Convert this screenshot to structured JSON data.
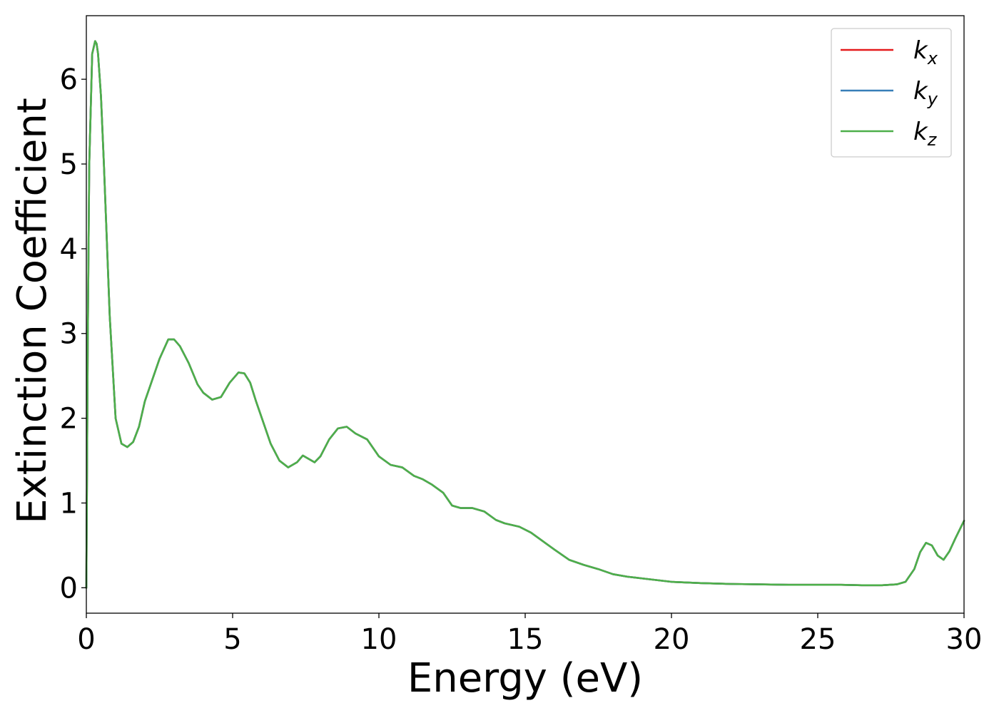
{
  "chart_data": {
    "type": "line",
    "title": "",
    "xlabel": "Energy (eV)",
    "ylabel": "Extinction Coefficient",
    "xlim": [
      0,
      30
    ],
    "ylim": [
      -0.3,
      6.75
    ],
    "xticks": [
      0,
      5,
      10,
      15,
      20,
      25,
      30
    ],
    "yticks": [
      0,
      1,
      2,
      3,
      4,
      5,
      6
    ],
    "xtick_labels": [
      "0",
      "5",
      "10",
      "15",
      "20",
      "25",
      "30"
    ],
    "ytick_labels": [
      "0",
      "1",
      "2",
      "3",
      "4",
      "5",
      "6"
    ],
    "grid": false,
    "legend": "top-right",
    "x": [
      0,
      0.05,
      0.1,
      0.2,
      0.3,
      0.35,
      0.4,
      0.5,
      0.6,
      0.8,
      1.0,
      1.2,
      1.4,
      1.6,
      1.8,
      2.0,
      2.2,
      2.5,
      2.8,
      3.0,
      3.2,
      3.5,
      3.8,
      4.0,
      4.3,
      4.6,
      4.9,
      5.2,
      5.4,
      5.6,
      5.8,
      6.0,
      6.3,
      6.6,
      6.9,
      7.2,
      7.4,
      7.6,
      7.8,
      8.0,
      8.3,
      8.6,
      8.9,
      9.2,
      9.6,
      10.0,
      10.4,
      10.8,
      11.2,
      11.5,
      11.8,
      12.2,
      12.5,
      12.8,
      13.2,
      13.6,
      14.0,
      14.3,
      14.8,
      15.2,
      15.6,
      16.0,
      16.5,
      17.0,
      17.5,
      18.0,
      18.5,
      19.0,
      19.5,
      20.0,
      21.0,
      22.0,
      23.0,
      24.0,
      25.0,
      25.8,
      26.5,
      27.2,
      27.7,
      28.0,
      28.3,
      28.5,
      28.7,
      28.9,
      29.1,
      29.3,
      29.5,
      29.7,
      29.9,
      30.0
    ],
    "series": [
      {
        "name": "k_x",
        "label_base": "k",
        "label_sub": "x",
        "color": "#e41a1c",
        "y": [
          0.0,
          3.0,
          5.0,
          6.3,
          6.45,
          6.42,
          6.3,
          5.8,
          5.0,
          3.2,
          2.0,
          1.7,
          1.66,
          1.72,
          1.9,
          2.2,
          2.4,
          2.7,
          2.93,
          2.93,
          2.85,
          2.65,
          2.4,
          2.3,
          2.22,
          2.25,
          2.42,
          2.54,
          2.53,
          2.42,
          2.2,
          2.0,
          1.7,
          1.5,
          1.42,
          1.48,
          1.56,
          1.52,
          1.48,
          1.55,
          1.75,
          1.88,
          1.9,
          1.82,
          1.75,
          1.55,
          1.45,
          1.42,
          1.32,
          1.28,
          1.22,
          1.12,
          0.97,
          0.94,
          0.94,
          0.9,
          0.8,
          0.76,
          0.72,
          0.65,
          0.55,
          0.45,
          0.33,
          0.27,
          0.22,
          0.16,
          0.13,
          0.11,
          0.09,
          0.07,
          0.055,
          0.045,
          0.04,
          0.035,
          0.035,
          0.035,
          0.03,
          0.03,
          0.04,
          0.07,
          0.22,
          0.42,
          0.53,
          0.5,
          0.38,
          0.33,
          0.43,
          0.58,
          0.72,
          0.79
        ]
      },
      {
        "name": "k_y",
        "label_base": "k",
        "label_sub": "y",
        "color": "#377eb8",
        "y": [
          0.0,
          3.0,
          5.0,
          6.3,
          6.45,
          6.42,
          6.3,
          5.8,
          5.0,
          3.2,
          2.0,
          1.7,
          1.66,
          1.72,
          1.9,
          2.2,
          2.4,
          2.7,
          2.93,
          2.93,
          2.85,
          2.65,
          2.4,
          2.3,
          2.22,
          2.25,
          2.42,
          2.54,
          2.53,
          2.42,
          2.2,
          2.0,
          1.7,
          1.5,
          1.42,
          1.48,
          1.56,
          1.52,
          1.48,
          1.55,
          1.75,
          1.88,
          1.9,
          1.82,
          1.75,
          1.55,
          1.45,
          1.42,
          1.32,
          1.28,
          1.22,
          1.12,
          0.97,
          0.94,
          0.94,
          0.9,
          0.8,
          0.76,
          0.72,
          0.65,
          0.55,
          0.45,
          0.33,
          0.27,
          0.22,
          0.16,
          0.13,
          0.11,
          0.09,
          0.07,
          0.055,
          0.045,
          0.04,
          0.035,
          0.035,
          0.035,
          0.03,
          0.03,
          0.04,
          0.07,
          0.22,
          0.42,
          0.53,
          0.5,
          0.38,
          0.33,
          0.43,
          0.58,
          0.72,
          0.79
        ]
      },
      {
        "name": "k_z",
        "label_base": "k",
        "label_sub": "z",
        "color": "#4daf4a",
        "y": [
          0.0,
          3.0,
          5.0,
          6.3,
          6.45,
          6.42,
          6.3,
          5.8,
          5.0,
          3.2,
          2.0,
          1.7,
          1.66,
          1.72,
          1.9,
          2.2,
          2.4,
          2.7,
          2.93,
          2.93,
          2.85,
          2.65,
          2.4,
          2.3,
          2.22,
          2.25,
          2.42,
          2.54,
          2.53,
          2.42,
          2.2,
          2.0,
          1.7,
          1.5,
          1.42,
          1.48,
          1.56,
          1.52,
          1.48,
          1.55,
          1.75,
          1.88,
          1.9,
          1.82,
          1.75,
          1.55,
          1.45,
          1.42,
          1.32,
          1.28,
          1.22,
          1.12,
          0.97,
          0.94,
          0.94,
          0.9,
          0.8,
          0.76,
          0.72,
          0.65,
          0.55,
          0.45,
          0.33,
          0.27,
          0.22,
          0.16,
          0.13,
          0.11,
          0.09,
          0.07,
          0.055,
          0.045,
          0.04,
          0.035,
          0.035,
          0.035,
          0.03,
          0.03,
          0.04,
          0.07,
          0.22,
          0.42,
          0.53,
          0.5,
          0.38,
          0.33,
          0.43,
          0.58,
          0.72,
          0.79
        ]
      }
    ]
  }
}
